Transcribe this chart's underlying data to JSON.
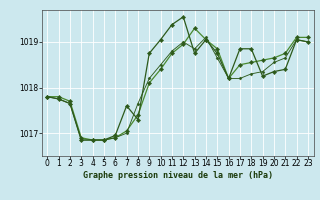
{
  "title": "Graphe pression niveau de la mer (hPa)",
  "bg_color": "#cce8ee",
  "grid_color": "#ffffff",
  "line_color1": "#2d5a1b",
  "line_color2": "#4a8a30",
  "xlim": [
    -0.5,
    23.5
  ],
  "ylim": [
    1016.5,
    1019.7
  ],
  "yticks": [
    1017,
    1018,
    1019
  ],
  "xticks": [
    0,
    1,
    2,
    3,
    4,
    5,
    6,
    7,
    8,
    9,
    10,
    11,
    12,
    13,
    14,
    15,
    16,
    17,
    18,
    19,
    20,
    21,
    22,
    23
  ],
  "series1_x": [
    0,
    1,
    2,
    3,
    4,
    5,
    6,
    7,
    8,
    9,
    10,
    11,
    12,
    13,
    14,
    15,
    16,
    17,
    18,
    19,
    20,
    21,
    22,
    23
  ],
  "series1_y": [
    1017.8,
    1017.8,
    1017.7,
    1016.9,
    1016.85,
    1016.85,
    1016.9,
    1017.05,
    1017.4,
    1018.1,
    1018.4,
    1018.75,
    1018.95,
    1019.3,
    1019.05,
    1018.85,
    1018.2,
    1018.5,
    1018.55,
    1018.6,
    1018.65,
    1018.75,
    1019.1,
    1019.1
  ],
  "series2_x": [
    0,
    1,
    2,
    3,
    4,
    5,
    6,
    7,
    8,
    9,
    10,
    11,
    12,
    13,
    14,
    15,
    16,
    17,
    18,
    19,
    20,
    21,
    22,
    23
  ],
  "series2_y": [
    1017.8,
    1017.75,
    1017.65,
    1016.85,
    1016.85,
    1016.85,
    1016.95,
    1017.6,
    1017.3,
    1018.75,
    1019.05,
    1019.38,
    1019.55,
    1018.75,
    1019.05,
    1018.75,
    1018.2,
    1018.85,
    1018.85,
    1018.25,
    1018.35,
    1018.4,
    1019.05,
    1019.0
  ],
  "series3_x": [
    0,
    1,
    2,
    3,
    4,
    5,
    6,
    7,
    8,
    9,
    10,
    11,
    12,
    13,
    14,
    15,
    16,
    17,
    18,
    19,
    20,
    21,
    22,
    23
  ],
  "series3_y": [
    1017.8,
    1017.75,
    1017.65,
    1016.85,
    1016.85,
    1016.85,
    1016.9,
    1017.0,
    1017.65,
    1018.2,
    1018.5,
    1018.8,
    1019.0,
    1018.85,
    1019.1,
    1018.65,
    1018.2,
    1018.2,
    1018.3,
    1018.35,
    1018.55,
    1018.65,
    1019.05,
    1019.0
  ],
  "xlabel_fontsize": 6,
  "tick_fontsize": 5.5,
  "linewidth": 0.9,
  "markersize": 2.2
}
